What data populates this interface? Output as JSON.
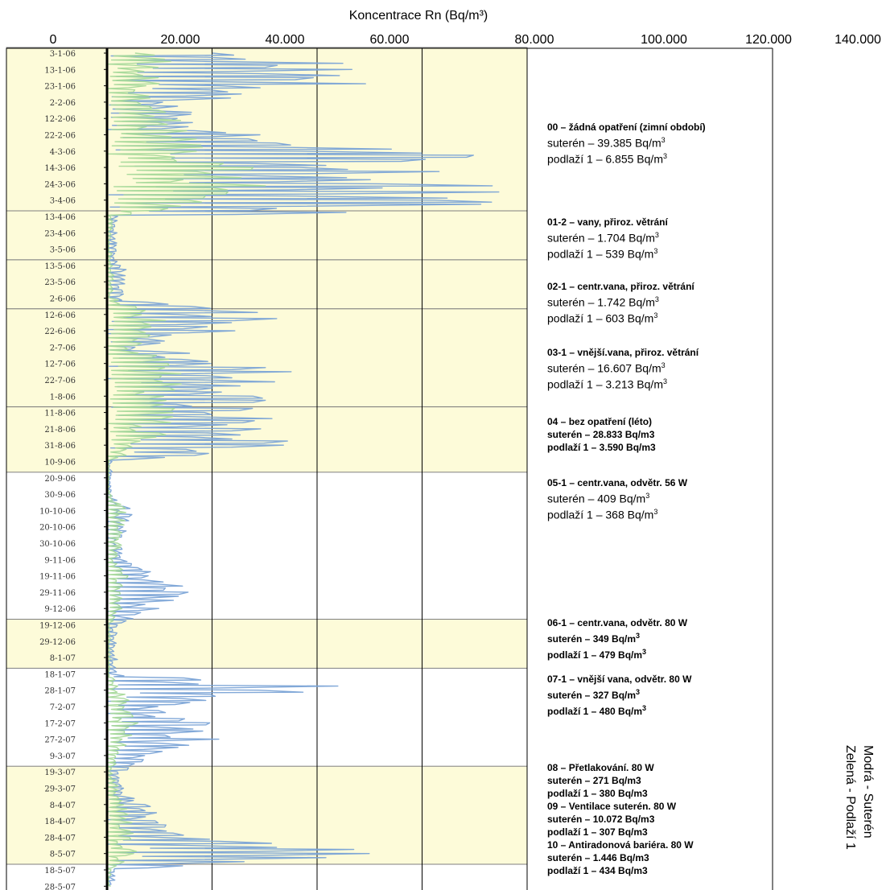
{
  "chart_data": {
    "type": "line",
    "xlabel": "Koncentrace Rn  (Bq/m³)",
    "x_ticks": [
      "0",
      "20.000",
      "40.000",
      "60.000",
      "80.000",
      "100.000",
      "120.000",
      "140.000"
    ],
    "xlim": [
      0,
      140000
    ],
    "y_dates": [
      "3-1-06",
      "13-1-06",
      "23-1-06",
      "2-2-06",
      "12-2-06",
      "22-2-06",
      "4-3-06",
      "14-3-06",
      "24-3-06",
      "3-4-06",
      "13-4-06",
      "23-4-06",
      "3-5-06",
      "13-5-06",
      "23-5-06",
      "2-6-06",
      "12-6-06",
      "22-6-06",
      "2-7-06",
      "12-7-06",
      "22-7-06",
      "1-8-06",
      "11-8-06",
      "21-8-06",
      "31-8-06",
      "10-9-06",
      "20-9-06",
      "30-9-06",
      "10-10-06",
      "20-10-06",
      "30-10-06",
      "9-11-06",
      "19-11-06",
      "29-11-06",
      "9-12-06",
      "19-12-06",
      "29-12-06",
      "8-1-07",
      "18-1-07",
      "28-1-07",
      "7-2-07",
      "17-2-07",
      "27-2-07",
      "9-3-07",
      "19-3-07",
      "29-3-07",
      "8-4-07",
      "18-4-07",
      "28-4-07",
      "8-5-07",
      "18-5-07",
      "28-5-07"
    ],
    "shaded_periods": [
      [
        0,
        9
      ],
      [
        10,
        12
      ],
      [
        13,
        15
      ],
      [
        16,
        21
      ],
      [
        22,
        25
      ],
      [
        35,
        37
      ],
      [
        44,
        49
      ]
    ],
    "series": [
      {
        "name": "Modrá - Suterén",
        "color": "#7aa3d6",
        "profile": [
          [
            0,
            30000
          ],
          [
            1,
            60000
          ],
          [
            2,
            50000
          ],
          [
            3,
            15000
          ],
          [
            4,
            18000
          ],
          [
            5,
            30000
          ],
          [
            6,
            70000
          ],
          [
            7,
            75000
          ],
          [
            8,
            80000
          ],
          [
            9,
            80000
          ],
          [
            9.6,
            80000
          ],
          [
            10,
            3000
          ],
          [
            12,
            2000
          ],
          [
            13,
            4000
          ],
          [
            15,
            3000
          ],
          [
            16,
            35000
          ],
          [
            17,
            25000
          ],
          [
            18,
            6000
          ],
          [
            19,
            35000
          ],
          [
            20,
            40000
          ],
          [
            21,
            30000
          ],
          [
            22,
            35000
          ],
          [
            23,
            30000
          ],
          [
            24,
            45000
          ],
          [
            25,
            1000
          ],
          [
            27,
            1000
          ],
          [
            28,
            5000
          ],
          [
            30,
            3000
          ],
          [
            31,
            6000
          ],
          [
            32,
            12000
          ],
          [
            33,
            18000
          ],
          [
            34,
            12000
          ],
          [
            35,
            2000
          ],
          [
            38,
            2000
          ],
          [
            39,
            58000
          ],
          [
            40,
            10000
          ],
          [
            41,
            20000
          ],
          [
            42,
            22000
          ],
          [
            43,
            10000
          ],
          [
            44,
            3000
          ],
          [
            46,
            8000
          ],
          [
            47,
            12000
          ],
          [
            48,
            16000
          ],
          [
            49,
            58000
          ],
          [
            50,
            2000
          ],
          [
            51,
            1500
          ]
        ]
      },
      {
        "name": "Zelená - Podlaží 1",
        "color": "#a6d99a",
        "profile": [
          [
            0,
            15000
          ],
          [
            1,
            10000
          ],
          [
            2,
            12000
          ],
          [
            3,
            8000
          ],
          [
            4,
            15000
          ],
          [
            5,
            16000
          ],
          [
            6,
            20000
          ],
          [
            7,
            28000
          ],
          [
            8,
            35000
          ],
          [
            9,
            20000
          ],
          [
            9.6,
            18000
          ],
          [
            10,
            1000
          ],
          [
            12,
            800
          ],
          [
            13,
            1500
          ],
          [
            15,
            1000
          ],
          [
            16,
            12000
          ],
          [
            17,
            10000
          ],
          [
            18,
            6000
          ],
          [
            19,
            14000
          ],
          [
            20,
            15000
          ],
          [
            21,
            12000
          ],
          [
            22,
            14000
          ],
          [
            23,
            12000
          ],
          [
            24,
            10000
          ],
          [
            25,
            500
          ],
          [
            27,
            600
          ],
          [
            28,
            4000
          ],
          [
            30,
            3000
          ],
          [
            31,
            2000
          ],
          [
            32,
            4000
          ],
          [
            33,
            3000
          ],
          [
            34,
            3000
          ],
          [
            35,
            800
          ],
          [
            38,
            600
          ],
          [
            39,
            3000
          ],
          [
            40,
            5000
          ],
          [
            41,
            6000
          ],
          [
            42,
            5000
          ],
          [
            43,
            3000
          ],
          [
            44,
            800
          ],
          [
            46,
            4000
          ],
          [
            47,
            5000
          ],
          [
            48,
            5000
          ],
          [
            49,
            6000
          ],
          [
            50,
            800
          ],
          [
            51,
            700
          ]
        ]
      }
    ],
    "legend": [
      "Modrá - Suterén",
      "Zelená - Podlaží 1"
    ]
  },
  "annotations": [
    {
      "name": "00",
      "lines": [
        {
          "s": "h",
          "t": "00 – žádná opatření  (zimní období)"
        },
        {
          "s": "n",
          "t": "suterén – 39.385 Bq/m",
          "sup": "3"
        },
        {
          "s": "n",
          "t": "podlaží 1 – 6.855 Bq/m",
          "sup": "3"
        }
      ]
    },
    {
      "name": "01-2",
      "lines": [
        {
          "s": "h",
          "t": "01-2 – vany, přiroz. větrání"
        },
        {
          "s": "n",
          "t": "suterén – 1.704 Bq/m",
          "sup": "3"
        },
        {
          "s": "n",
          "t": "podlaží 1 – 539 Bq/m",
          "sup": "3"
        }
      ]
    },
    {
      "name": "02-1",
      "lines": [
        {
          "s": "h",
          "t": "02-1 – centr.vana, přiroz. větrání"
        },
        {
          "s": "n",
          "t": "suterén – 1.742 Bq/m",
          "sup": "3"
        },
        {
          "s": "n",
          "t": "podlaží 1 – 603 Bq/m",
          "sup": "3"
        }
      ]
    },
    {
      "name": "03-1",
      "lines": [
        {
          "s": "h",
          "t": "03-1 – vnější.vana, přiroz. větrání"
        },
        {
          "s": "n",
          "t": "suterén – 16.607 Bq/m",
          "sup": "3"
        },
        {
          "s": "n",
          "t": "podlaží 1 – 3.213 Bq/m",
          "sup": "3"
        }
      ]
    },
    {
      "name": "04",
      "lines": [
        {
          "s": "h",
          "t": "04 – bez opatření  (léto)"
        },
        {
          "s": "b",
          "t": "suterén – 28.833 Bq/m3"
        },
        {
          "s": "b",
          "t": "podlaží 1 – 3.590 Bq/m3"
        }
      ]
    },
    {
      "name": "05-1",
      "lines": [
        {
          "s": "h",
          "t": "05-1 – centr.vana, odvětr. 56 W"
        },
        {
          "s": "n",
          "t": "suterén – 409 Bq/m",
          "sup": "3"
        },
        {
          "s": "n",
          "t": "podlaží 1 – 368 Bq/m",
          "sup": "3"
        }
      ]
    },
    {
      "name": "06-1",
      "lines": [
        {
          "s": "h",
          "t": "06-1 – centr.vana, odvětr. 80 W"
        },
        {
          "s": "b",
          "t": "suterén – 349 Bq/m",
          "sup": "3"
        },
        {
          "s": "b",
          "t": "podlaží 1 – 479 Bq/m",
          "sup": "3"
        }
      ]
    },
    {
      "name": "07-1",
      "lines": [
        {
          "s": "h",
          "t": "07-1 – vnější vana, odvětr. 80 W"
        },
        {
          "s": "b",
          "t": "suterén – 327 Bq/m",
          "sup": "3"
        },
        {
          "s": "b",
          "t": "podlaží 1 – 480 Bq/m",
          "sup": "3"
        }
      ]
    },
    {
      "name": "08",
      "lines": [
        {
          "s": "h",
          "t": "08 – Přetlakování. 80 W"
        },
        {
          "s": "b",
          "t": "suterén – 271 Bq/m3"
        },
        {
          "s": "b",
          "t": "podlaží 1 – 380 Bq/m3"
        },
        {
          "s": "h",
          "t": "09 – Ventilace suterén. 80 W"
        },
        {
          "s": "b",
          "t": "suterén – 10.072 Bq/m3"
        },
        {
          "s": "b",
          "t": "podlaží 1 – 307 Bq/m3"
        },
        {
          "s": "h",
          "t": "10 – Antiradonová bariéra. 80 W"
        },
        {
          "s": "b",
          "t": "suterén – 1.446 Bq/m3"
        },
        {
          "s": "b",
          "t": "podlaží 1 – 434 Bq/m3"
        }
      ]
    }
  ]
}
